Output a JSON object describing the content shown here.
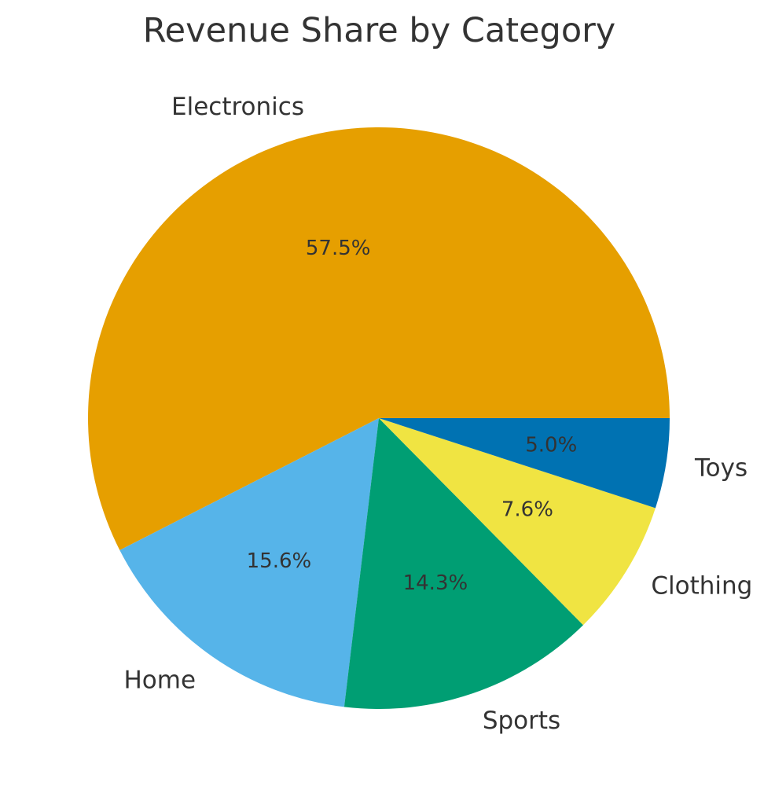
{
  "chart_data": {
    "type": "pie",
    "title": "Revenue Share by Category",
    "start_angle": "counterclockwise from 3 o'clock",
    "slices": [
      {
        "label": "Electronics",
        "value": 57.5,
        "display": "57.5%",
        "color": "#E69F00"
      },
      {
        "label": "Home",
        "value": 15.6,
        "display": "15.6%",
        "color": "#56B4E9"
      },
      {
        "label": "Sports",
        "value": 14.3,
        "display": "14.3%",
        "color": "#009E73"
      },
      {
        "label": "Clothing",
        "value": 7.6,
        "display": "7.6%",
        "color": "#F0E442"
      },
      {
        "label": "Toys",
        "value": 5.0,
        "display": "5.0%",
        "color": "#0072B2"
      }
    ]
  }
}
